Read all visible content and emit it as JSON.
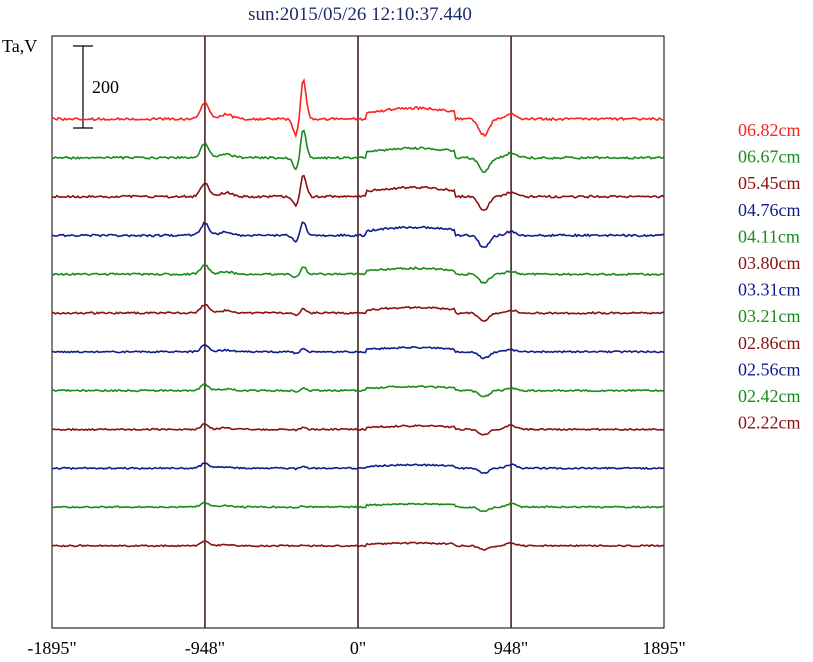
{
  "chart_data": {
    "type": "line",
    "title": "sun:2015/05/26 12:10:37.440",
    "ylabel": "Ta,V",
    "scale_bar_label": "200",
    "scale_bar_value": 200,
    "xlim": [
      -1895,
      1895
    ],
    "x_ticks": [
      {
        "value": -1895,
        "label": "-1895\""
      },
      {
        "value": -948,
        "label": "-948\""
      },
      {
        "value": 0,
        "label": "0\""
      },
      {
        "value": 948,
        "label": "948\""
      },
      {
        "value": 1895,
        "label": "1895\""
      }
    ],
    "vertical_lines": [
      -948,
      0,
      948
    ],
    "colors": {
      "red": "#ff2020",
      "green": "#1a8a1a",
      "maroon": "#8b1010",
      "blue": "#101c8c"
    },
    "series": [
      {
        "name": "06.82cm",
        "color": "#ff2020"
      },
      {
        "name": "06.67cm",
        "color": "#1a8a1a"
      },
      {
        "name": "05.45cm",
        "color": "#8b1010"
      },
      {
        "name": "04.76cm",
        "color": "#101c8c"
      },
      {
        "name": "04.11cm",
        "color": "#1a8a1a"
      },
      {
        "name": "03.80cm",
        "color": "#8b1010"
      },
      {
        "name": "03.31cm",
        "color": "#101c8c"
      },
      {
        "name": "03.21cm",
        "color": "#1a8a1a"
      },
      {
        "name": "02.86cm",
        "color": "#8b1010"
      },
      {
        "name": "02.56cm",
        "color": "#101c8c"
      },
      {
        "name": "02.42cm",
        "color": "#1a8a1a"
      },
      {
        "name": "02.22cm",
        "color": "#8b1010"
      }
    ]
  }
}
